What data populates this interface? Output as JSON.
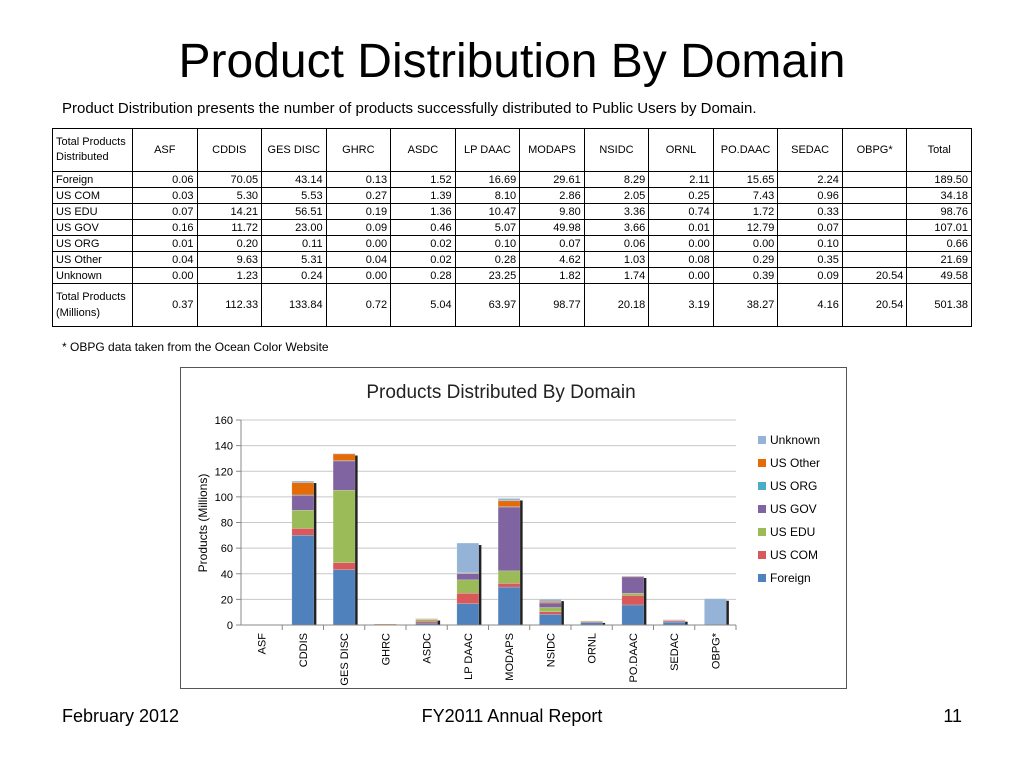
{
  "slide": {
    "title": "Product Distribution By Domain",
    "subtitle": "Product Distribution presents the number of products successfully distributed to Public Users by Domain.",
    "footnote": "* OBPG data taken from the Ocean Color Website",
    "footer_left": "February 2012",
    "footer_center": "FY2011 Annual Report",
    "footer_right": "11"
  },
  "table": {
    "corner": "Total Products Distributed",
    "columns": [
      "ASF",
      "CDDIS",
      "GES DISC",
      "GHRC",
      "ASDC",
      "LP DAAC",
      "MODAPS",
      "NSIDC",
      "ORNL",
      "PO.DAAC",
      "SEDAC",
      "OBPG*",
      "Total"
    ],
    "rows": [
      {
        "label": "Foreign",
        "cells": [
          "0.06",
          "70.05",
          "43.14",
          "0.13",
          "1.52",
          "16.69",
          "29.61",
          "8.29",
          "2.11",
          "15.65",
          "2.24",
          "",
          "189.50"
        ]
      },
      {
        "label": "US COM",
        "cells": [
          "0.03",
          "5.30",
          "5.53",
          "0.27",
          "1.39",
          "8.10",
          "2.86",
          "2.05",
          "0.25",
          "7.43",
          "0.96",
          "",
          "34.18"
        ]
      },
      {
        "label": "US EDU",
        "cells": [
          "0.07",
          "14.21",
          "56.51",
          "0.19",
          "1.36",
          "10.47",
          "9.80",
          "3.36",
          "0.74",
          "1.72",
          "0.33",
          "",
          "98.76"
        ]
      },
      {
        "label": "US GOV",
        "cells": [
          "0.16",
          "11.72",
          "23.00",
          "0.09",
          "0.46",
          "5.07",
          "49.98",
          "3.66",
          "0.01",
          "12.79",
          "0.07",
          "",
          "107.01"
        ]
      },
      {
        "label": "US ORG",
        "cells": [
          "0.01",
          "0.20",
          "0.11",
          "0.00",
          "0.02",
          "0.10",
          "0.07",
          "0.06",
          "0.00",
          "0.00",
          "0.10",
          "",
          "0.66"
        ]
      },
      {
        "label": "US Other",
        "cells": [
          "0.04",
          "9.63",
          "5.31",
          "0.04",
          "0.02",
          "0.28",
          "4.62",
          "1.03",
          "0.08",
          "0.29",
          "0.35",
          "",
          "21.69"
        ]
      },
      {
        "label": "Unknown",
        "cells": [
          "0.00",
          "1.23",
          "0.24",
          "0.00",
          "0.28",
          "23.25",
          "1.82",
          "1.74",
          "0.00",
          "0.39",
          "0.09",
          "20.54",
          "49.58"
        ]
      }
    ],
    "total_row": {
      "label": "Total Products (Millions)",
      "cells": [
        "0.37",
        "112.33",
        "133.84",
        "0.72",
        "5.04",
        "63.97",
        "98.77",
        "20.18",
        "3.19",
        "38.27",
        "4.16",
        "20.54",
        "501.38"
      ]
    }
  },
  "chart_data": {
    "type": "bar",
    "stacked": true,
    "title": "Products Distributed By Domain",
    "ylabel": "Products (Millions)",
    "xlabel": "",
    "ylim": [
      0,
      160
    ],
    "yticks": [
      0,
      20,
      40,
      60,
      80,
      100,
      120,
      140,
      160
    ],
    "grid": true,
    "legend_position": "right",
    "categories": [
      "ASF",
      "CDDIS",
      "GES DISC",
      "GHRC",
      "ASDC",
      "LP DAAC",
      "MODAPS",
      "NSIDC",
      "ORNL",
      "PO.DAAC",
      "SEDAC",
      "OBPG*"
    ],
    "series": [
      {
        "name": "Foreign",
        "color": "#4f81bd",
        "values": [
          0.06,
          70.05,
          43.14,
          0.13,
          1.52,
          16.69,
          29.61,
          8.29,
          2.11,
          15.65,
          2.24,
          0
        ]
      },
      {
        "name": "US COM",
        "color": "#d9585a",
        "values": [
          0.03,
          5.3,
          5.53,
          0.27,
          1.39,
          8.1,
          2.86,
          2.05,
          0.25,
          7.43,
          0.96,
          0
        ]
      },
      {
        "name": "US EDU",
        "color": "#9bbb59",
        "values": [
          0.07,
          14.21,
          56.51,
          0.19,
          1.36,
          10.47,
          9.8,
          3.36,
          0.74,
          1.72,
          0.33,
          0
        ]
      },
      {
        "name": "US GOV",
        "color": "#8064a2",
        "values": [
          0.16,
          11.72,
          23.0,
          0.09,
          0.46,
          5.07,
          49.98,
          3.66,
          0.01,
          12.79,
          0.07,
          0
        ]
      },
      {
        "name": "US ORG",
        "color": "#4bacc6",
        "values": [
          0.01,
          0.2,
          0.11,
          0.0,
          0.02,
          0.1,
          0.07,
          0.06,
          0.0,
          0.0,
          0.1,
          0
        ]
      },
      {
        "name": "US Other",
        "color": "#e36c09",
        "values": [
          0.04,
          9.63,
          5.31,
          0.04,
          0.02,
          0.28,
          4.62,
          1.03,
          0.08,
          0.29,
          0.35,
          0
        ]
      },
      {
        "name": "Unknown",
        "color": "#95b3d7",
        "values": [
          0.0,
          1.23,
          0.24,
          0.0,
          0.28,
          23.25,
          1.82,
          1.74,
          0.0,
          0.39,
          0.09,
          20.54
        ]
      }
    ]
  }
}
